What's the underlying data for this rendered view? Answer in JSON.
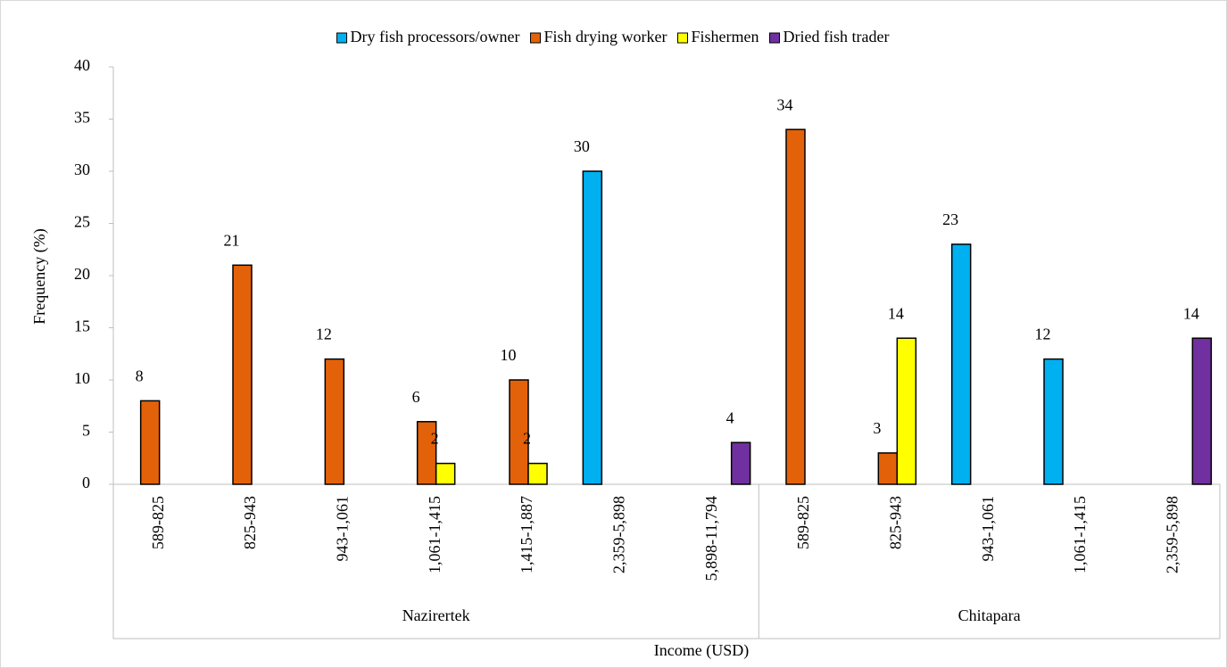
{
  "chart_data": {
    "type": "bar",
    "y_label": "Frequency (%)",
    "x_label": "Income (USD)",
    "categories": [
      "589-825",
      "825-943",
      "943-1,061",
      "1,061-1,415",
      "1,415-1,887",
      "2,359-5,898",
      "5,898-11,794",
      "589-825",
      "825-943",
      "943-1,061",
      "1,061-1,415",
      "2,359-5,898"
    ],
    "groups": [
      {
        "label": "Nazirertek",
        "size": 7
      },
      {
        "label": "Chitapara",
        "size": 5
      }
    ],
    "series": [
      {
        "name": "Dry fish processors/owner",
        "color": "#00b0f0",
        "values": [
          null,
          null,
          null,
          null,
          null,
          30,
          null,
          null,
          null,
          23,
          12,
          null
        ]
      },
      {
        "name": "Fish drying worker",
        "color": "#e36209",
        "values": [
          8,
          21,
          12,
          6,
          10,
          null,
          null,
          34,
          3,
          null,
          null,
          null
        ]
      },
      {
        "name": "Fishermen",
        "color": "#ffff00",
        "values": [
          null,
          null,
          null,
          2,
          2,
          null,
          null,
          null,
          14,
          null,
          null,
          null
        ]
      },
      {
        "name": "Dried fish trader",
        "color": "#7030a0",
        "values": [
          null,
          null,
          null,
          null,
          null,
          null,
          4,
          null,
          null,
          null,
          null,
          14
        ]
      }
    ],
    "ylim": [
      0,
      40
    ],
    "yticks": [
      0,
      5,
      10,
      15,
      20,
      25,
      30,
      35,
      40
    ],
    "legend": "top",
    "grid": false
  }
}
